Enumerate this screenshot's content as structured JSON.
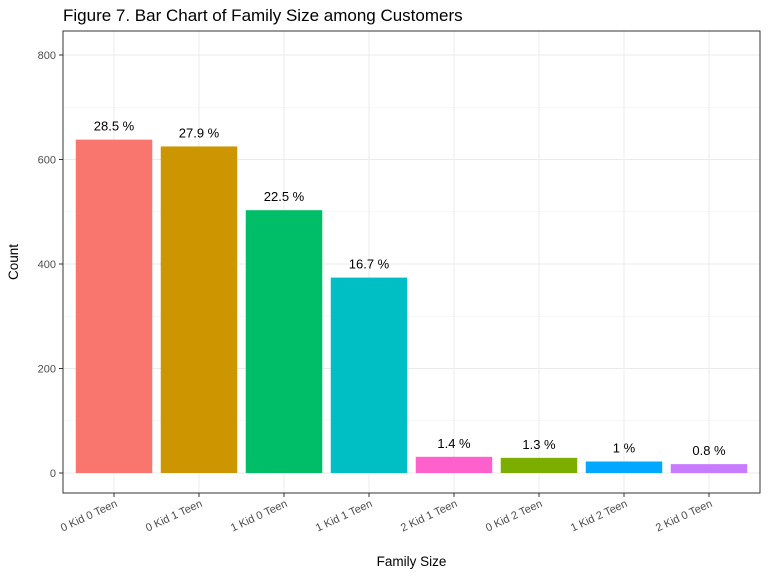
{
  "chart_data": {
    "type": "bar",
    "title": "Figure 7. Bar Chart of Family Size among Customers",
    "xlabel": "Family Size",
    "ylabel": "Count",
    "ylim": [
      0,
      840
    ],
    "yticks": [
      0,
      200,
      400,
      600,
      800
    ],
    "grid": true,
    "legend": "none",
    "categories": [
      "0 Kid 0 Teen",
      "0 Kid 1 Teen",
      "1 Kid 0 Teen",
      "1 Kid 1 Teen",
      "2 Kid 1 Teen",
      "0 Kid 2 Teen",
      "1 Kid 2 Teen",
      "2 Kid 0 Teen"
    ],
    "values": [
      638,
      625,
      503,
      374,
      31,
      29,
      22,
      17
    ],
    "labels": [
      "28.5 %",
      "27.9 %",
      "22.5 %",
      "16.7 %",
      "1.4 %",
      "1.3 %",
      "1 %",
      "0.8 %"
    ],
    "colors": [
      "#F8766D",
      "#CD9600",
      "#00BE67",
      "#00BFC4",
      "#FF61CC",
      "#7CAE00",
      "#00A9FF",
      "#C77CFF"
    ]
  }
}
